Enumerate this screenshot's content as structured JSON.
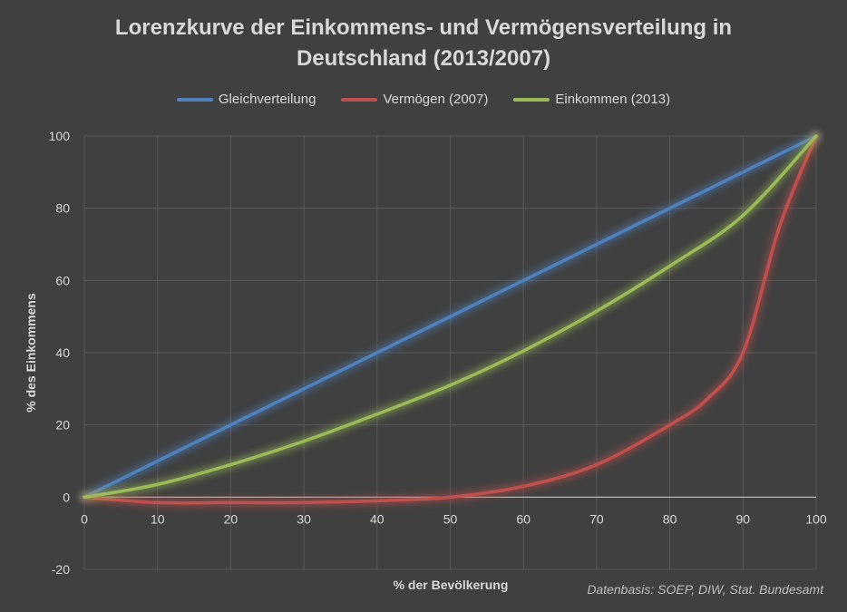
{
  "chart_data": {
    "type": "line",
    "title_lines": [
      "Lorenzkurve der Einkommens- und Vermögensverteilung in",
      "Deutschland (2013/2007)"
    ],
    "xlabel": "% der Bevölkerung",
    "ylabel": "% des Einkommens",
    "source": "Datenbasis: SOEP, DIW, Stat. Bundesamt",
    "xlim": [
      0,
      100
    ],
    "ylim": [
      -20,
      100
    ],
    "xticks": [
      0,
      10,
      20,
      30,
      40,
      50,
      60,
      70,
      80,
      90,
      100
    ],
    "yticks": [
      -20,
      0,
      20,
      40,
      60,
      80,
      100
    ],
    "grid": true,
    "legend_position": "top",
    "series": [
      {
        "name": "Gleichverteilung",
        "color": "#4f81bd",
        "x": [
          0,
          100
        ],
        "y": [
          0,
          100
        ]
      },
      {
        "name": "Vermögen (2007)",
        "color": "#c0504d",
        "x": [
          0,
          10,
          20,
          30,
          40,
          50,
          60,
          70,
          80,
          85,
          90,
          95,
          100
        ],
        "y": [
          0,
          -1.5,
          -1.5,
          -1.5,
          -1,
          0,
          3,
          9,
          20,
          27,
          40,
          75,
          100
        ]
      },
      {
        "name": "Einkommen (2013)",
        "color": "#9bbb59",
        "x": [
          0,
          10,
          20,
          30,
          40,
          50,
          60,
          70,
          80,
          90,
          100
        ],
        "y": [
          0,
          3.5,
          9,
          15.5,
          23,
          31,
          40.5,
          51.5,
          64,
          78,
          100
        ]
      }
    ]
  }
}
